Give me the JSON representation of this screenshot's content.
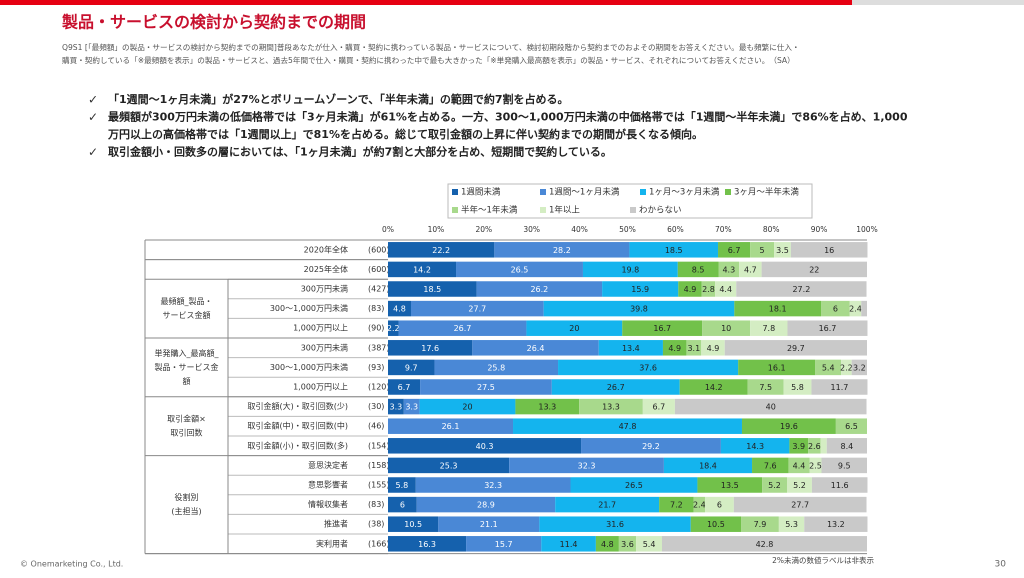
{
  "header": {
    "title": "製品・サービスの検討から契約までの期間",
    "question": [
      "Q9S1 [「最頻額」の製品・サービスの検討から契約までの期間]普段あなたが仕入・購買・契約に携わっている製品・サービスについて、検討初期段階から契約までのおよその期間をお答えください。最も頻繁に仕入・",
      "購買・契約している「※最頻額を表示」の製品・サービスと、過去5年間で仕入・購買・契約に携わった中で最も大きかった「※単発購入最高額を表示」の製品・サービス、それぞれについてお答えください。　（SA）"
    ],
    "bullets": [
      [
        "「1週間～1ヶ月未満」が27%とボリュームゾーンで、「半年未満」の範囲で約7割を占める。"
      ],
      [
        "最頻額が300万円未満の低価格帯では「3ヶ月未満」が61%を占める。一方、300～1,000万円未満の中価格帯では「1週間～半年未満」で86%を占め、1,000",
        "万円以上の高価格帯では「1週間以上」で81%を占める。総じて取引金額の上昇に伴い契約までの期間が長くなる傾向。"
      ],
      [
        "取引金額小・回数多の層においては、「1ヶ月未満」が約7割と大部分を占め、短期間で契約している。"
      ]
    ]
  },
  "chart_data": {
    "type": "stacked-bar-horizontal",
    "categories": [
      "2020年全体",
      "2025年全体",
      "300万円未満",
      "300～1,000万円未満",
      "1,000万円以上",
      "300万円未満",
      "300～1,000万円未満",
      "1,000万円以上",
      "取引金額(大)・取引回数(少)",
      "取引金額(中)・取引回数(中)",
      "取引金額(小)・取引回数(多)",
      "意思決定者",
      "意思影響者",
      "情報収集者",
      "推進者",
      "実利用者"
    ],
    "sample_sizes": [
      "(600)",
      "(600)",
      "(427)",
      "(83)",
      "(90)",
      "(387)",
      "(93)",
      "(120)",
      "(30)",
      "(46)",
      "(154)",
      "(158)",
      "(155)",
      "(83)",
      "(38)",
      "(166)"
    ],
    "groups": [
      {
        "label": [
          "最頻額_製品・",
          "サービス金額"
        ],
        "count": 3
      },
      {
        "label": [
          "単発購入_最高額_",
          "製品・サービス金",
          "額"
        ],
        "count": 3
      },
      {
        "label": [
          "取引金額×",
          "取引回数"
        ],
        "count": 3
      },
      {
        "label": [
          "役割別",
          "(主担当)"
        ],
        "count": 5
      }
    ],
    "series": [
      {
        "name": "1週間未満",
        "color": "#1561ad",
        "values": [
          22.2,
          14.2,
          18.5,
          4.8,
          2.2,
          17.6,
          9.7,
          6.7,
          3.3,
          0,
          40.3,
          25.3,
          5.8,
          6.0,
          10.5,
          16.3
        ]
      },
      {
        "name": "1週間～1ヶ月未満",
        "color": "#4a88d6",
        "values": [
          28.2,
          26.5,
          26.2,
          27.7,
          26.7,
          26.4,
          25.8,
          27.5,
          3.3,
          26.1,
          29.2,
          32.3,
          32.3,
          28.9,
          21.1,
          15.7
        ]
      },
      {
        "name": "1ヶ月～3ヶ月未満",
        "color": "#14b4ee",
        "values": [
          18.5,
          19.8,
          15.9,
          39.8,
          20.0,
          13.4,
          37.6,
          26.7,
          20.0,
          47.8,
          14.3,
          18.4,
          26.5,
          21.7,
          31.6,
          11.4
        ]
      },
      {
        "name": "3ヶ月～半年未満",
        "color": "#72c14a",
        "values": [
          6.7,
          8.5,
          4.9,
          18.1,
          16.7,
          4.9,
          16.1,
          14.2,
          13.3,
          19.6,
          3.9,
          7.6,
          13.5,
          7.2,
          10.5,
          4.8
        ]
      },
      {
        "name": "半年～1年未満",
        "color": "#a8d98c",
        "values": [
          5.0,
          4.3,
          2.8,
          6.0,
          10.0,
          3.1,
          5.4,
          7.5,
          13.3,
          6.5,
          2.6,
          4.4,
          5.2,
          2.4,
          7.9,
          3.6
        ]
      },
      {
        "name": "1年以上",
        "color": "#d4edc3",
        "values": [
          3.5,
          4.7,
          4.4,
          2.4,
          7.8,
          4.9,
          2.2,
          5.8,
          6.7,
          0,
          1.3,
          2.5,
          5.2,
          6.0,
          5.3,
          5.4
        ]
      },
      {
        "name": "わからない",
        "color": "#c9c9c9",
        "values": [
          16.0,
          22.0,
          27.2,
          1.2,
          16.7,
          29.7,
          3.2,
          11.7,
          40.0,
          0,
          8.4,
          9.5,
          11.6,
          27.7,
          13.2,
          42.8
        ]
      }
    ],
    "xlim": [
      0,
      100
    ],
    "xticks": [
      {
        "value": 0,
        "label": "0%"
      },
      {
        "value": 10,
        "label": "10%"
      },
      {
        "value": 20,
        "label": "20%"
      },
      {
        "value": 30,
        "label": "30%"
      },
      {
        "value": 40,
        "label": "40%"
      },
      {
        "value": 50,
        "label": "50%"
      },
      {
        "value": 60,
        "label": "60%"
      },
      {
        "value": 70,
        "label": "70%"
      },
      {
        "value": 80,
        "label": "80%"
      },
      {
        "value": 90,
        "label": "90%"
      },
      {
        "value": 100,
        "label": "100%"
      }
    ],
    "label_min": 2,
    "note": "2%未満の数値ラベルは非表示"
  },
  "footer": {
    "copyright": "© Onemarketing Co., Ltd.",
    "page": "30"
  }
}
